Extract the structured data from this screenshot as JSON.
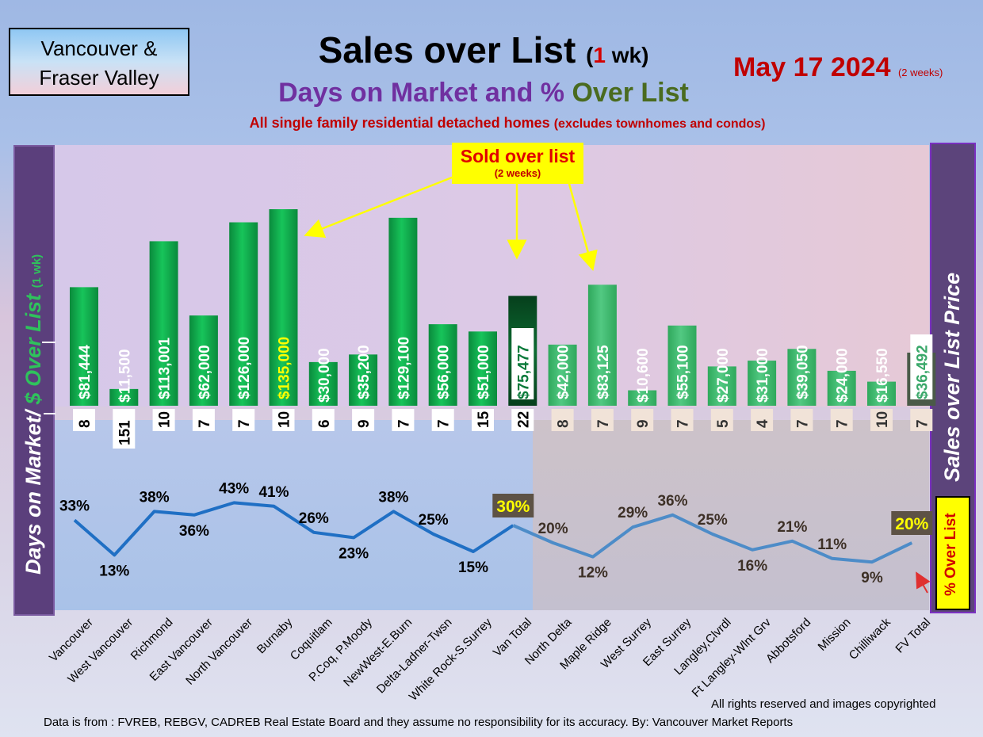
{
  "header": {
    "region_line1": "Vancouver &",
    "region_line2": "Fraser Valley",
    "title_main": "Sales over List",
    "title_open": "(",
    "title_num": "1",
    "title_unit": " wk)",
    "subtitle_a": "Days on Market and %",
    "subtitle_b": "Over List",
    "subnote_main": "All single family residential detached homes",
    "subnote_small": "(excludes townhomes and condos)",
    "date_main": "May 17  2024",
    "date_small": "(2 weeks)"
  },
  "annotations": {
    "sold_title": "Sold over list",
    "sold_sub": "(2 weeks)",
    "left_axis_a": "Days on Market/",
    "left_axis_b": "$ Over List",
    "left_axis_c": "(1 wk)",
    "right_axis": "Sales over List Price",
    "overlist_badge": "% Over List"
  },
  "footer": {
    "rights": "All rights reserved and  images copyrighted",
    "source": "Data is from : FVREB, REBGV, CADREB Real Estate Board and they assume no responsibility for its accuracy. By: Vancouver Market Reports"
  },
  "colors": {
    "bar_green": "#0aa64a",
    "bar_fv_green": "#3cba6a",
    "van_total": "#0b5a2a",
    "line_van": "#1f6fc4",
    "line_fv": "#4d8cc8",
    "highlight_yellow": "#ffff00",
    "total_label_box": "#5d5245"
  },
  "chart_data": {
    "type": "bar",
    "categories": [
      "Vancouver",
      "West Vancouver",
      "Richmond",
      "East Vancouver",
      "North Vancouver",
      "Burnaby",
      "Coquitlam",
      "P.Coq, P.Moody",
      "NewWest-E.Burn",
      "Delta-Ladner-Twsn",
      "White Rock-S.Surrey",
      "Van Total",
      "North Delta",
      "Maple Ridge",
      "West Surrey",
      "East Surrey",
      "Langley,Clvrdl",
      "Ft Langley-Wlnt Grv",
      "Abbotsford",
      "Mission",
      "Chilliwack",
      "FV Total"
    ],
    "series": [
      {
        "values": [
          81444,
          11500,
          113001,
          62000,
          126000,
          135000,
          30000,
          35200,
          129100,
          56000,
          51000,
          75477,
          42000,
          83125,
          10600,
          55100,
          27000,
          31000,
          39050,
          24000,
          16550,
          36492
        ],
        "labels": [
          "$81,444",
          "$11,500",
          "$113,001",
          "$62,000",
          "$126,000",
          "$135,000",
          "$30,000",
          "$35,200",
          "$129,100",
          "$56,000",
          "$51,000",
          "$75,477",
          "$42,000",
          "$83,125",
          "$10,600",
          "$55,100",
          "$27,000",
          "$31,000",
          "$39,050",
          "$24,000",
          "$16,550",
          "$36,492"
        ]
      },
      {
        "values": [
          8,
          151,
          10,
          7,
          7,
          10,
          6,
          9,
          7,
          7,
          15,
          22,
          8,
          7,
          9,
          7,
          5,
          4,
          7,
          7,
          10,
          7
        ],
        "labels": [
          "8",
          "151",
          "10",
          "7",
          "7",
          "10",
          "6",
          "9",
          "7",
          "7",
          "15",
          "22",
          "8",
          "7",
          "9",
          "7",
          "5",
          "4",
          "7",
          "7",
          "10",
          "7"
        ]
      },
      {
        "values": [
          33,
          13,
          38,
          36,
          43,
          41,
          26,
          23,
          38,
          25,
          15,
          30,
          20,
          12,
          29,
          36,
          25,
          16,
          21,
          11,
          9,
          20
        ],
        "labels": [
          "33%",
          "13%",
          "38%",
          "36%",
          "43%",
          "41%",
          "26%",
          "23%",
          "38%",
          "25%",
          "15%",
          "30%",
          "20%",
          "12%",
          "29%",
          "36%",
          "25%",
          "16%",
          "21%",
          "11%",
          "9%",
          "20%"
        ]
      }
    ],
    "grid": false
  }
}
